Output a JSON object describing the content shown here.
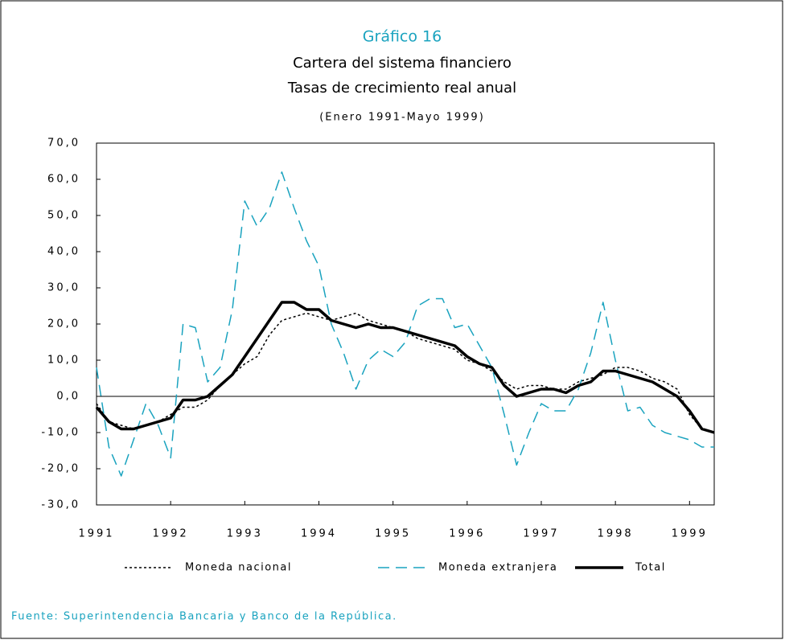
{
  "chart_data": {
    "type": "line",
    "title_label": "Gráfico 16",
    "title": "Cartera del sistema financiero",
    "subtitle": "Tasas de crecimiento real anual",
    "period": "(Enero 1991-Mayo 1999)",
    "source": "Fuente: Superintendencia Bancaria y Banco de la República.",
    "x": [
      1991,
      1991.167,
      1991.333,
      1991.5,
      1991.667,
      1991.833,
      1992,
      1992.167,
      1992.333,
      1992.5,
      1992.667,
      1992.833,
      1993,
      1993.167,
      1993.333,
      1993.5,
      1993.667,
      1993.833,
      1994,
      1994.167,
      1994.333,
      1994.5,
      1994.667,
      1994.833,
      1995,
      1995.167,
      1995.333,
      1995.5,
      1995.667,
      1995.833,
      1996,
      1996.167,
      1996.333,
      1996.5,
      1996.667,
      1996.833,
      1997,
      1997.167,
      1997.333,
      1997.5,
      1997.667,
      1997.833,
      1998,
      1998.167,
      1998.333,
      1998.5,
      1998.667,
      1998.833,
      1999,
      1999.167,
      1999.333
    ],
    "series": [
      {
        "name": "Moneda nacional",
        "color": "#000000",
        "style": "dotted",
        "width": 1.5,
        "values": [
          -2,
          -7,
          -8,
          -9,
          -8,
          -7,
          -5,
          -3,
          -3,
          -1,
          3,
          6,
          9,
          11,
          17,
          21,
          22,
          23,
          22,
          21,
          22,
          23,
          21,
          20,
          19,
          18,
          16,
          15,
          14,
          13,
          10,
          9,
          7,
          4,
          2,
          3,
          3,
          2,
          2,
          4,
          5,
          6,
          8,
          8,
          7,
          5,
          4,
          2,
          -5,
          -9,
          -10
        ]
      },
      {
        "name": "Moneda extranjera",
        "color": "#1aa3bf",
        "style": "dashed",
        "width": 1.5,
        "values": [
          8,
          -14,
          -22,
          -12,
          -2,
          -8,
          -17,
          20,
          19,
          4,
          8,
          24,
          54,
          47,
          52,
          62,
          52,
          43,
          36,
          20,
          12,
          2,
          10,
          13,
          11,
          15,
          25,
          27,
          27,
          19,
          20,
          14,
          8,
          -5,
          -19,
          -10,
          -2,
          -4,
          -4,
          2,
          12,
          26,
          10,
          -4,
          -3,
          -8,
          -10,
          -11,
          -12,
          -14,
          -14
        ]
      },
      {
        "name": "Total",
        "color": "#000000",
        "style": "solid",
        "width": 3.5,
        "values": [
          -3,
          -7,
          -9,
          -9,
          -8,
          -7,
          -6,
          -1,
          -1,
          0,
          3,
          6,
          11,
          16,
          21,
          26,
          26,
          24,
          24,
          21,
          20,
          19,
          20,
          19,
          19,
          18,
          17,
          16,
          15,
          14,
          11,
          9,
          8,
          3,
          0,
          1,
          2,
          2,
          1,
          3,
          4,
          7,
          7,
          6,
          5,
          4,
          2,
          0,
          -4,
          -9,
          -10
        ]
      }
    ],
    "xlim": [
      1991,
      1999.333
    ],
    "xticks": [
      1991,
      1992,
      1993,
      1994,
      1995,
      1996,
      1997,
      1998,
      1999
    ],
    "ylim": [
      -30,
      70
    ],
    "yticks": [
      {
        "value": -30,
        "label": "-30,0"
      },
      {
        "value": -20,
        "label": "-20,0"
      },
      {
        "value": -10,
        "label": "-10,0"
      },
      {
        "value": 0,
        "label": "0,0"
      },
      {
        "value": 10,
        "label": "10,0"
      },
      {
        "value": 20,
        "label": "20,0"
      },
      {
        "value": 30,
        "label": "30,0"
      },
      {
        "value": 40,
        "label": "40,0"
      },
      {
        "value": 50,
        "label": "50,0"
      },
      {
        "value": 60,
        "label": "60,0"
      },
      {
        "value": 70,
        "label": "70,0"
      }
    ],
    "zero_line": true
  }
}
